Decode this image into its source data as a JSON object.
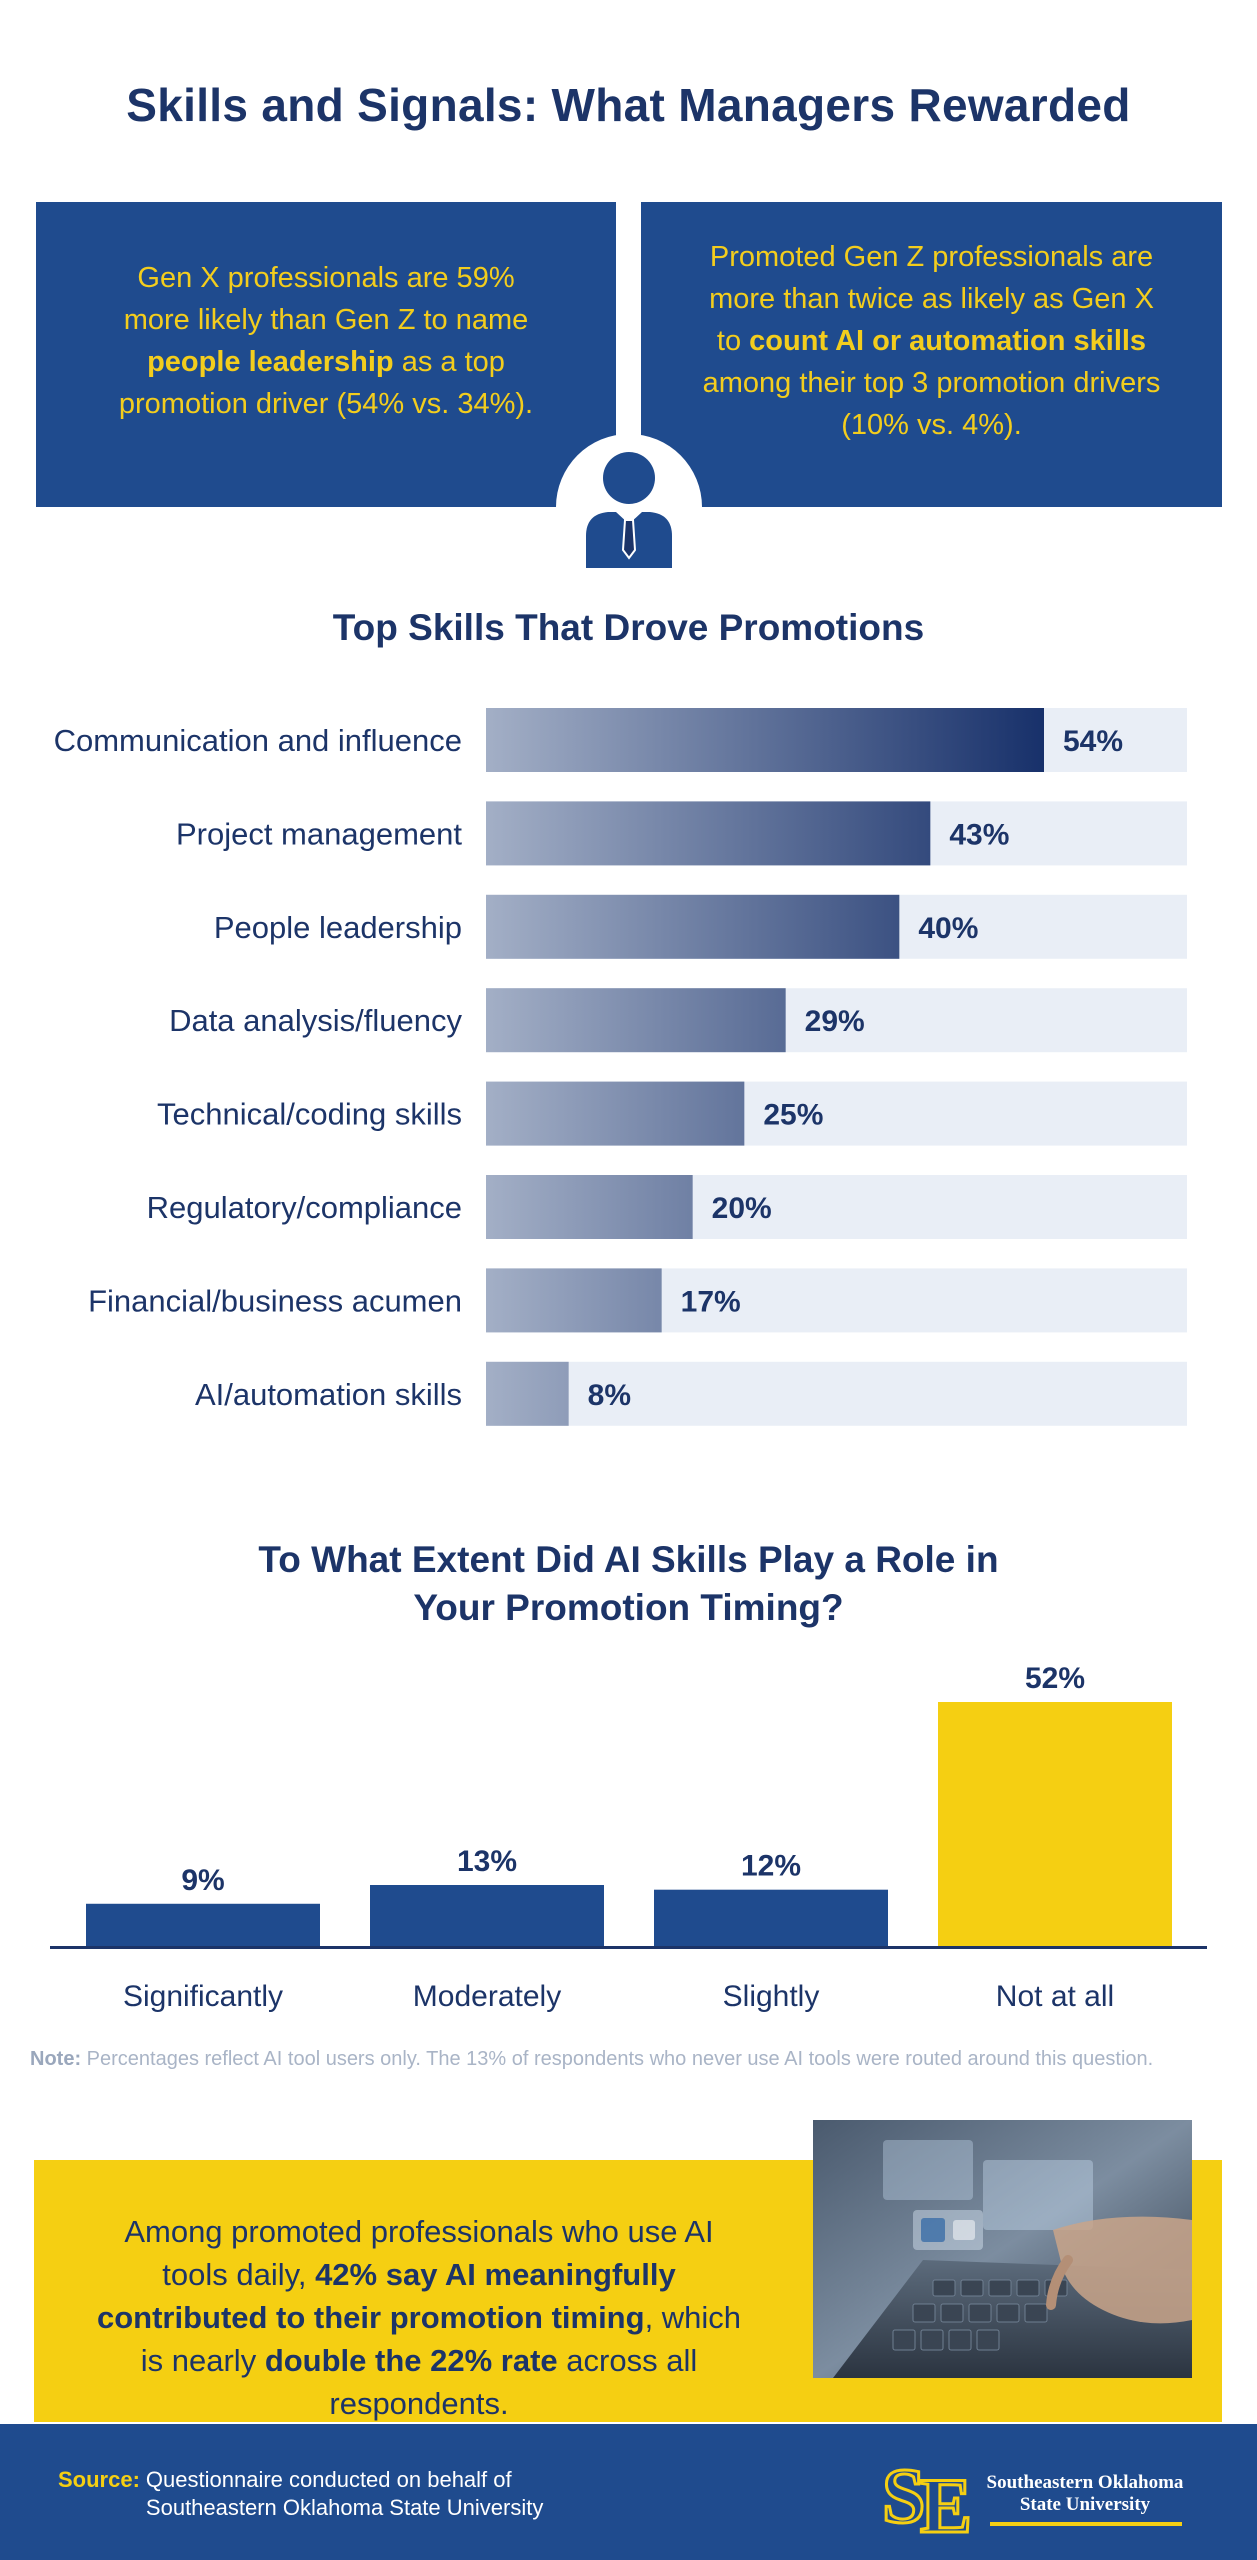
{
  "title": "Skills and Signals: What Managers Rewarded",
  "stat_boxes": [
    {
      "before": "Gen X professionals are 59% more likely than Gen Z to name ",
      "highlight": "people leadership",
      "after": " as a top promotion driver (54% vs. 34%)."
    },
    {
      "before": "Promoted Gen Z professionals are more than twice as likely as Gen X to ",
      "highlight": "count AI or automation skills",
      "after": " among their top 3 promotion drivers (10% vs. 4%)."
    }
  ],
  "icons": {
    "center": "person-with-tie-icon",
    "photo": "laptop-ai-hands-icon",
    "logo": "se-monogram-logo-icon"
  },
  "colors": {
    "navy": "#1c3468",
    "box_blue": "#1f4b8e",
    "yellow": "#f5cf12",
    "bar_track": "#e9eef6",
    "bar_light": "#a3afc6",
    "bar_dark": "#17306a"
  },
  "chart_data": [
    {
      "type": "bar",
      "orientation": "horizontal",
      "title": "Top Skills That Drove Promotions",
      "categories": [
        "Communication and influence",
        "Project management",
        "People leadership",
        "Data analysis/fluency",
        "Technical/coding skills",
        "Regulatory/compliance",
        "Financial/business acumen",
        "AI/automation skills"
      ],
      "values": [
        54,
        43,
        40,
        29,
        25,
        20,
        17,
        8
      ],
      "value_labels": [
        "54%",
        "43%",
        "40%",
        "29%",
        "25%",
        "20%",
        "17%",
        "8%"
      ],
      "xlim": [
        0,
        65
      ]
    },
    {
      "type": "bar",
      "orientation": "vertical",
      "title": "To What Extent Did AI Skills Play a Role in Your Promotion Timing?",
      "categories": [
        "Significantly",
        "Moderately",
        "Slightly",
        "Not at all"
      ],
      "values": [
        9,
        13,
        12,
        52
      ],
      "value_labels": [
        "9%",
        "13%",
        "12%",
        "52%"
      ],
      "highlight_index": 3,
      "ylim": [
        0,
        52
      ]
    }
  ],
  "note": {
    "label": "Note:",
    "text": " Percentages reflect AI tool users only. The 13% of respondents who never use AI tools were routed around this question."
  },
  "callout": {
    "t1": "Among promoted professionals who use AI tools daily, ",
    "b1": "42% say AI meaningfully contributed to their promotion timing",
    "t2": ", which is nearly ",
    "b2": "double the 22% rate",
    "t3": " across all respondents."
  },
  "footer": {
    "source_label": "Source:",
    "source_text": "Questionnaire conducted on behalf of Southeastern Oklahoma State University",
    "university_line1": "Southeastern Oklahoma",
    "university_line2": "State University"
  }
}
